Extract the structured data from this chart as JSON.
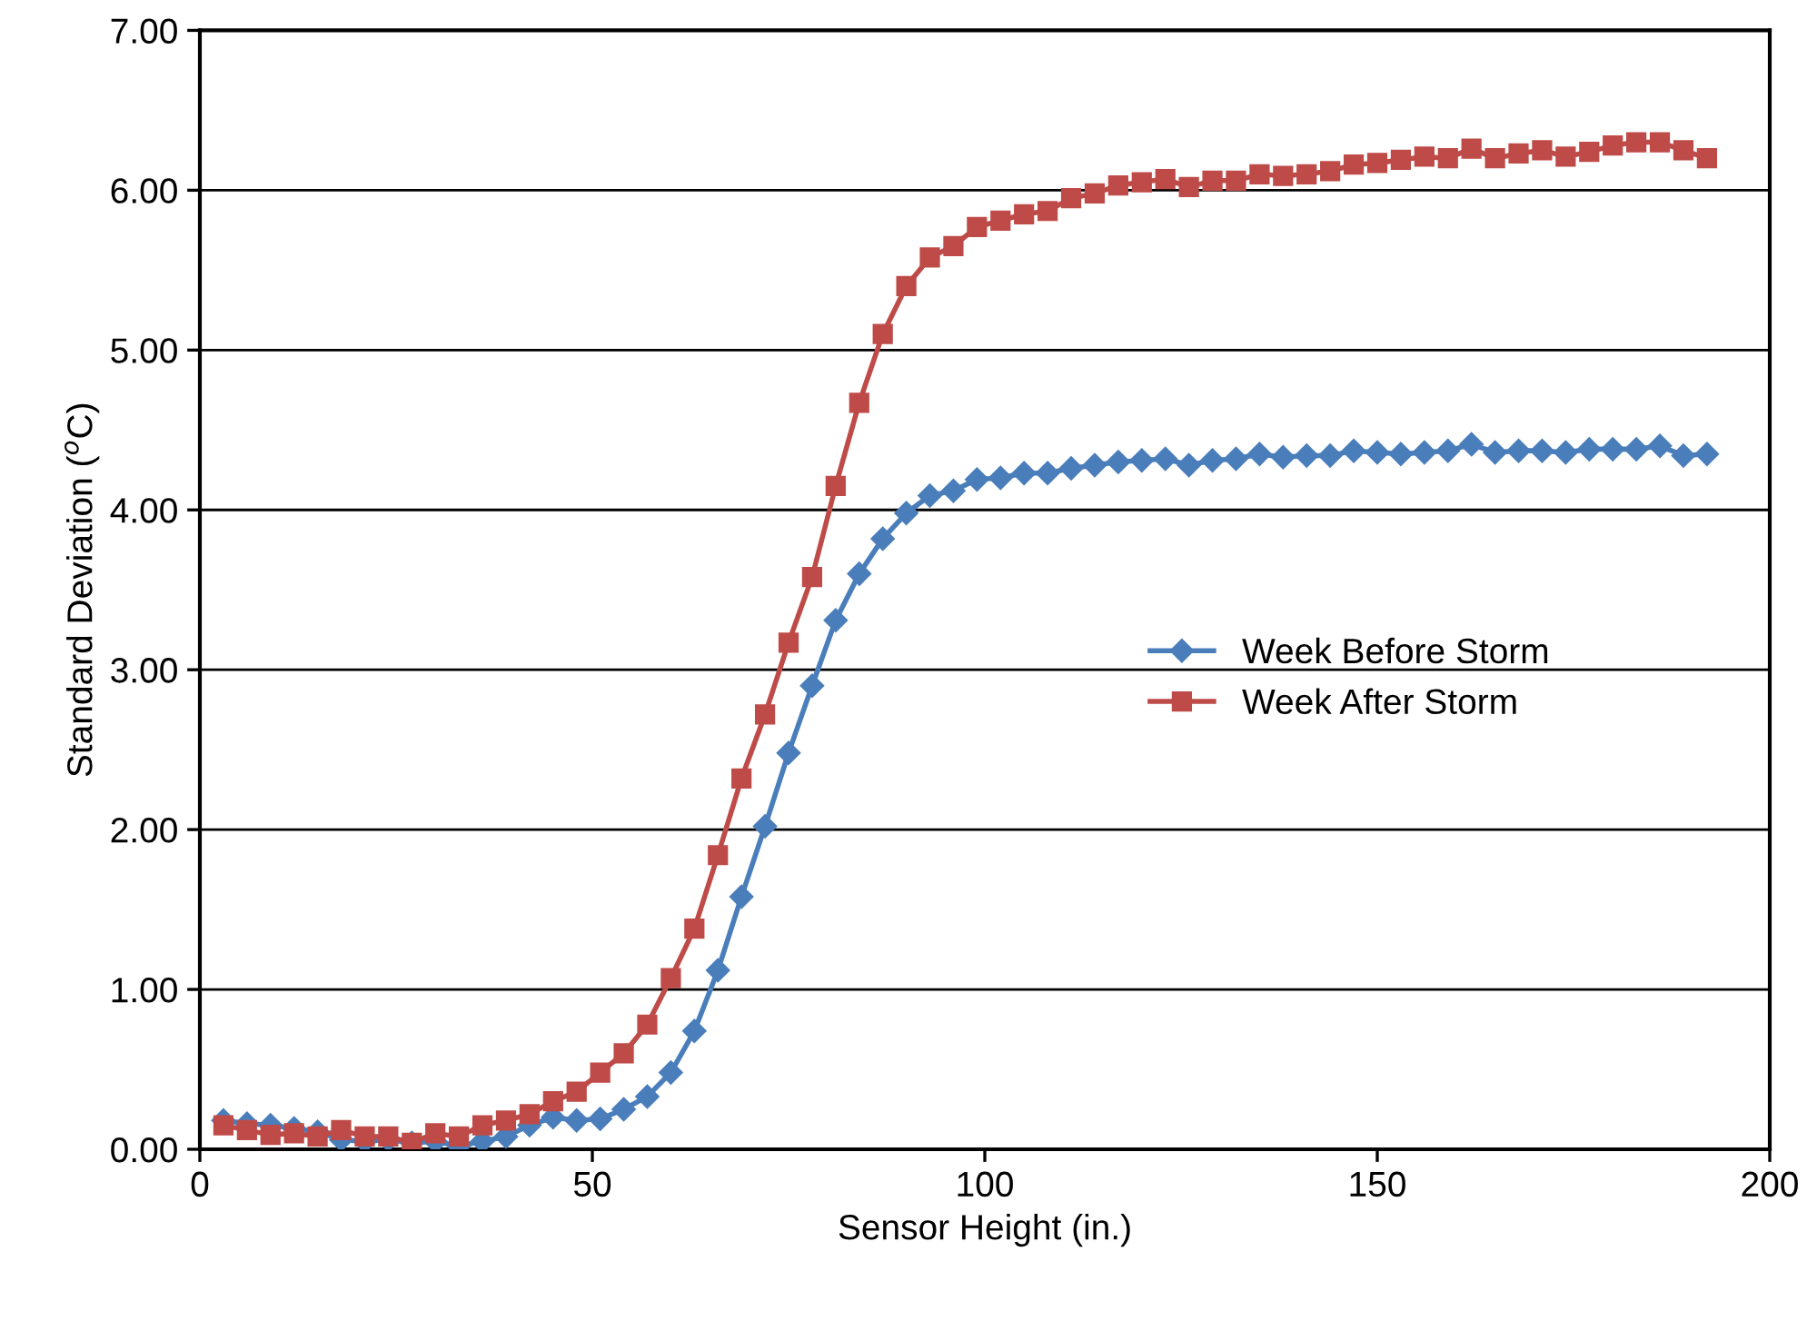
{
  "chart_data": {
    "type": "line",
    "xlabel": "Sensor Height (in.)",
    "ylabel": "Standard Deviation ($^{o}$C)",
    "x": [
      3,
      6,
      9,
      12,
      15,
      18,
      21,
      24,
      27,
      30,
      33,
      36,
      39,
      42,
      45,
      48,
      51,
      54,
      57,
      60,
      63,
      66,
      69,
      72,
      75,
      78,
      81,
      84,
      87,
      90,
      93,
      96,
      99,
      102,
      105,
      108,
      111,
      114,
      117,
      120,
      123,
      126,
      129,
      132,
      135,
      138,
      141,
      144,
      147,
      150,
      153,
      156,
      159,
      162,
      165,
      168,
      171,
      174,
      177,
      180,
      183,
      186,
      189,
      192
    ],
    "series": [
      {
        "name": "Week Before Storm",
        "color": "#4a7ebb",
        "marker": "diamond",
        "values": [
          0.18,
          0.16,
          0.15,
          0.13,
          0.11,
          0.06,
          0.05,
          0.06,
          0.04,
          0.05,
          0.02,
          0.05,
          0.08,
          0.15,
          0.2,
          0.18,
          0.19,
          0.25,
          0.33,
          0.48,
          0.74,
          1.12,
          1.58,
          2.02,
          2.48,
          2.9,
          3.31,
          3.6,
          3.82,
          3.98,
          4.09,
          4.12,
          4.19,
          4.2,
          4.23,
          4.23,
          4.26,
          4.28,
          4.3,
          4.31,
          4.32,
          4.28,
          4.31,
          4.32,
          4.35,
          4.33,
          4.34,
          4.34,
          4.37,
          4.36,
          4.35,
          4.36,
          4.37,
          4.41,
          4.36,
          4.37,
          4.37,
          4.36,
          4.38,
          4.38,
          4.38,
          4.4,
          4.34,
          4.35
        ]
      },
      {
        "name": "Week After Storm",
        "color": "#be4b48",
        "marker": "square",
        "values": [
          0.15,
          0.12,
          0.09,
          0.1,
          0.08,
          0.12,
          0.08,
          0.08,
          0.04,
          0.1,
          0.08,
          0.15,
          0.18,
          0.22,
          0.3,
          0.36,
          0.48,
          0.6,
          0.78,
          1.07,
          1.38,
          1.84,
          2.32,
          2.72,
          3.17,
          3.58,
          4.15,
          4.67,
          5.1,
          5.4,
          5.58,
          5.65,
          5.77,
          5.81,
          5.85,
          5.87,
          5.95,
          5.98,
          6.03,
          6.05,
          6.07,
          6.02,
          6.06,
          6.06,
          6.1,
          6.09,
          6.1,
          6.12,
          6.16,
          6.17,
          6.19,
          6.21,
          6.2,
          6.26,
          6.2,
          6.23,
          6.25,
          6.21,
          6.24,
          6.28,
          6.3,
          6.3,
          6.25,
          6.2
        ]
      }
    ],
    "xlim": [
      0,
      200
    ],
    "xticks": [
      0,
      50,
      100,
      150,
      200
    ],
    "ylim": [
      0,
      7
    ],
    "yticks": [
      {
        "value": 0,
        "label": "0.00"
      },
      {
        "value": 1,
        "label": "1.00"
      },
      {
        "value": 2,
        "label": "2.00"
      },
      {
        "value": 3,
        "label": "3.00"
      },
      {
        "value": 4,
        "label": "4.00"
      },
      {
        "value": 5,
        "label": "5.00"
      },
      {
        "value": 6,
        "label": "6.00"
      },
      {
        "value": 7,
        "label": "7.00"
      }
    ],
    "grid": "y",
    "legend": "center right",
    "line_style": "solid"
  }
}
